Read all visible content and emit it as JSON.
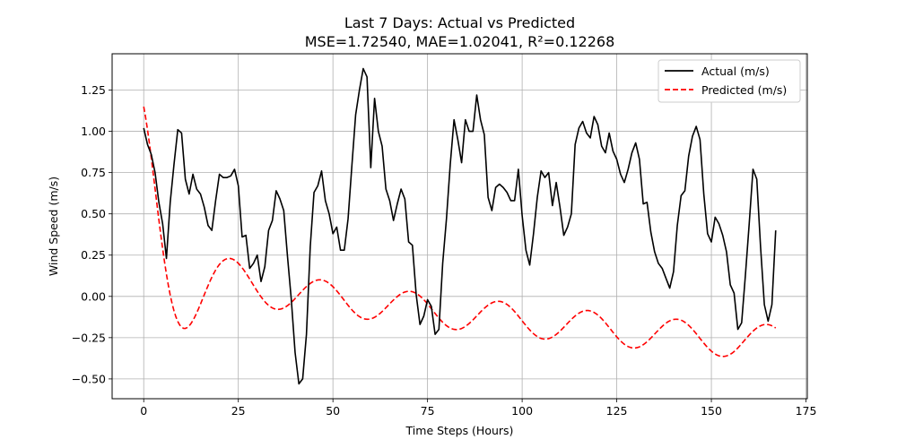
{
  "chart_data": {
    "type": "line",
    "title": "Last 7 Days: Actual vs Predicted",
    "subtitle": "MSE=1.72540, MAE=1.02041, R²=0.12268",
    "xlabel": "Time Steps (Hours)",
    "ylabel": "Wind Speed (m/s)",
    "xlim": [
      -8.35,
      175.35
    ],
    "ylim": [
      -0.62,
      1.47
    ],
    "x_ticks": [
      0,
      25,
      50,
      75,
      100,
      125,
      150,
      175
    ],
    "y_ticks": [
      -0.5,
      -0.25,
      0,
      0.25,
      0.5,
      0.75,
      1.0,
      1.25
    ],
    "x_tick_labels": [
      "0",
      "25",
      "50",
      "75",
      "100",
      "125",
      "150",
      "175"
    ],
    "y_tick_labels": [
      "−0.50",
      "−0.25",
      "0.00",
      "0.25",
      "0.50",
      "0.75",
      "1.00",
      "1.25"
    ],
    "grid": true,
    "legend_position": "top-right",
    "series": [
      {
        "name": "Actual (m/s)",
        "color": "#000000",
        "style": "solid",
        "x_start": 0,
        "x_step": 1,
        "values": [
          1.02,
          0.92,
          0.86,
          0.75,
          0.57,
          0.44,
          0.23,
          0.57,
          0.8,
          1.01,
          0.99,
          0.71,
          0.62,
          0.74,
          0.65,
          0.62,
          0.54,
          0.43,
          0.4,
          0.58,
          0.74,
          0.72,
          0.72,
          0.73,
          0.77,
          0.67,
          0.36,
          0.37,
          0.17,
          0.2,
          0.25,
          0.09,
          0.18,
          0.4,
          0.46,
          0.64,
          0.59,
          0.52,
          0.24,
          -0.02,
          -0.34,
          -0.53,
          -0.5,
          -0.23,
          0.3,
          0.63,
          0.67,
          0.76,
          0.58,
          0.5,
          0.38,
          0.42,
          0.28,
          0.28,
          0.47,
          0.79,
          1.1,
          1.25,
          1.38,
          1.33,
          0.78,
          1.2,
          1.0,
          0.91,
          0.65,
          0.58,
          0.46,
          0.56,
          0.65,
          0.59,
          0.33,
          0.31,
          0.01,
          -0.17,
          -0.12,
          -0.02,
          -0.06,
          -0.23,
          -0.2,
          0.2,
          0.47,
          0.8,
          1.07,
          0.95,
          0.81,
          1.07,
          1.0,
          1.0,
          1.22,
          1.07,
          0.98,
          0.6,
          0.52,
          0.66,
          0.68,
          0.66,
          0.63,
          0.58,
          0.58,
          0.77,
          0.49,
          0.28,
          0.19,
          0.38,
          0.6,
          0.76,
          0.72,
          0.75,
          0.55,
          0.69,
          0.54,
          0.37,
          0.42,
          0.5,
          0.92,
          1.02,
          1.06,
          0.99,
          0.96,
          1.09,
          1.04,
          0.91,
          0.87,
          0.99,
          0.88,
          0.83,
          0.74,
          0.69,
          0.77,
          0.87,
          0.93,
          0.83,
          0.56,
          0.57,
          0.39,
          0.27,
          0.2,
          0.17,
          0.11,
          0.05,
          0.15,
          0.43,
          0.61,
          0.64,
          0.85,
          0.97,
          1.03,
          0.95,
          0.62,
          0.38,
          0.33,
          0.48,
          0.44,
          0.37,
          0.27,
          0.07,
          0.02,
          -0.2,
          -0.16,
          0.13,
          0.44,
          0.77,
          0.71,
          0.3,
          -0.05,
          -0.15,
          -0.05,
          0.4
        ]
      },
      {
        "name": "Predicted (m/s)",
        "color": "#ff0000",
        "style": "dashed",
        "model": {
          "description": "damped oscillation approximation of the predicted curve",
          "offset_start": 0.2,
          "offset_end": -0.27,
          "amplitude_start": 0.95,
          "amplitude_floor": 0.1,
          "decay": 0.12,
          "period": 23.5,
          "phase": 0.0
        },
        "x_start": 0,
        "x_end": 167
      }
    ]
  }
}
